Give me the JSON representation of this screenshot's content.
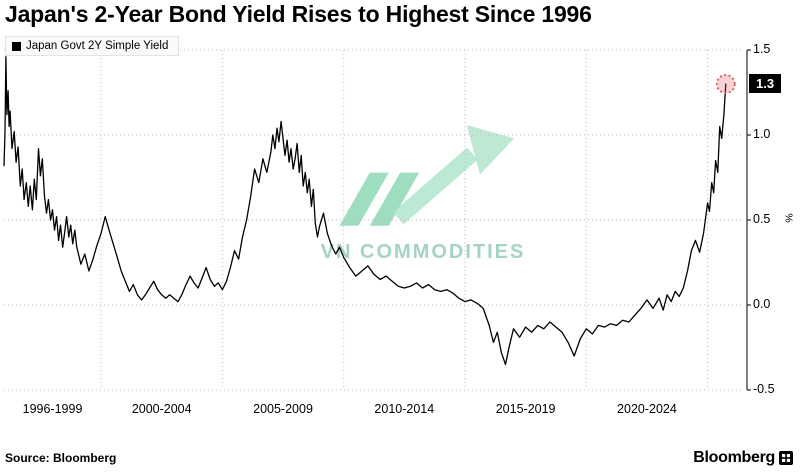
{
  "title": "Japan's 2-Year Bond Yield Rises to Highest Since 1996",
  "legend": {
    "label": "Japan Govt 2Y Simple Yield"
  },
  "watermark": "VN COMMODITIES",
  "source": "Source: Bloomberg",
  "brand": "Bloomberg",
  "last_value_label": "1.3",
  "axis": {
    "y_unit": "%",
    "y_tick_labels": [
      "1.5",
      "1.0",
      "0.5",
      "0.0",
      "-0.5"
    ],
    "x_labels": [
      "1996-1999",
      "2000-2004",
      "2005-2009",
      "2010-2014",
      "2015-2019",
      "2020-2024"
    ]
  },
  "colors": {
    "line": "#000000",
    "highlight": "#e05252",
    "highlight_fill": "rgba(232,96,96,0.28)",
    "watermark": "#9ccfbd",
    "grid": "#bcbcbc"
  },
  "chart_data": {
    "type": "line",
    "title": "Japan's 2-Year Bond Yield Rises to Highest Since 1996",
    "xlabel": "",
    "ylabel": "%",
    "xlim": [
      1996,
      2026.5
    ],
    "ylim": [
      -0.5,
      1.5
    ],
    "y_ticks": [
      1.5,
      1.0,
      0.5,
      0.0,
      -0.5
    ],
    "x_gridlines": [
      2000,
      2005,
      2010,
      2015,
      2020,
      2025
    ],
    "x_label_centers": [
      1998,
      2002.5,
      2007.5,
      2012.5,
      2017.5,
      2022.5
    ],
    "last_value": 1.3,
    "series": [
      {
        "name": "Japan Govt 2Y Simple Yield",
        "points": [
          [
            1996.0,
            0.82
          ],
          [
            1996.04,
            1.02
          ],
          [
            1996.08,
            1.46
          ],
          [
            1996.12,
            1.12
          ],
          [
            1996.17,
            1.26
          ],
          [
            1996.21,
            1.05
          ],
          [
            1996.25,
            1.14
          ],
          [
            1996.33,
            0.92
          ],
          [
            1996.42,
            1.02
          ],
          [
            1996.5,
            0.84
          ],
          [
            1996.58,
            0.93
          ],
          [
            1996.67,
            0.7
          ],
          [
            1996.75,
            0.8
          ],
          [
            1996.83,
            0.62
          ],
          [
            1996.92,
            0.72
          ],
          [
            1997.0,
            0.58
          ],
          [
            1997.08,
            0.7
          ],
          [
            1997.17,
            0.56
          ],
          [
            1997.25,
            0.74
          ],
          [
            1997.33,
            0.62
          ],
          [
            1997.42,
            0.92
          ],
          [
            1997.5,
            0.76
          ],
          [
            1997.58,
            0.86
          ],
          [
            1997.67,
            0.64
          ],
          [
            1997.75,
            0.54
          ],
          [
            1997.83,
            0.62
          ],
          [
            1997.92,
            0.5
          ],
          [
            1998.0,
            0.56
          ],
          [
            1998.08,
            0.44
          ],
          [
            1998.17,
            0.52
          ],
          [
            1998.25,
            0.38
          ],
          [
            1998.33,
            0.47
          ],
          [
            1998.42,
            0.34
          ],
          [
            1998.5,
            0.43
          ],
          [
            1998.58,
            0.52
          ],
          [
            1998.67,
            0.4
          ],
          [
            1998.75,
            0.47
          ],
          [
            1998.83,
            0.36
          ],
          [
            1998.92,
            0.44
          ],
          [
            1999.0,
            0.34
          ],
          [
            1999.17,
            0.24
          ],
          [
            1999.33,
            0.3
          ],
          [
            1999.5,
            0.2
          ],
          [
            1999.67,
            0.27
          ],
          [
            1999.83,
            0.35
          ],
          [
            2000.0,
            0.42
          ],
          [
            2000.17,
            0.52
          ],
          [
            2000.33,
            0.44
          ],
          [
            2000.5,
            0.36
          ],
          [
            2000.67,
            0.28
          ],
          [
            2000.83,
            0.2
          ],
          [
            2001.0,
            0.14
          ],
          [
            2001.17,
            0.08
          ],
          [
            2001.33,
            0.12
          ],
          [
            2001.5,
            0.06
          ],
          [
            2001.67,
            0.03
          ],
          [
            2001.83,
            0.06
          ],
          [
            2002.0,
            0.1
          ],
          [
            2002.17,
            0.14
          ],
          [
            2002.33,
            0.09
          ],
          [
            2002.5,
            0.06
          ],
          [
            2002.67,
            0.04
          ],
          [
            2002.83,
            0.06
          ],
          [
            2003.0,
            0.04
          ],
          [
            2003.17,
            0.02
          ],
          [
            2003.33,
            0.06
          ],
          [
            2003.5,
            0.12
          ],
          [
            2003.67,
            0.17
          ],
          [
            2003.83,
            0.13
          ],
          [
            2004.0,
            0.1
          ],
          [
            2004.17,
            0.16
          ],
          [
            2004.33,
            0.22
          ],
          [
            2004.5,
            0.15
          ],
          [
            2004.67,
            0.11
          ],
          [
            2004.83,
            0.13
          ],
          [
            2005.0,
            0.09
          ],
          [
            2005.17,
            0.14
          ],
          [
            2005.33,
            0.22
          ],
          [
            2005.5,
            0.32
          ],
          [
            2005.67,
            0.27
          ],
          [
            2005.83,
            0.4
          ],
          [
            2006.0,
            0.5
          ],
          [
            2006.17,
            0.64
          ],
          [
            2006.33,
            0.8
          ],
          [
            2006.5,
            0.72
          ],
          [
            2006.67,
            0.86
          ],
          [
            2006.83,
            0.78
          ],
          [
            2007.0,
            0.9
          ],
          [
            2007.08,
            1.0
          ],
          [
            2007.17,
            0.92
          ],
          [
            2007.25,
            1.04
          ],
          [
            2007.33,
            0.96
          ],
          [
            2007.42,
            1.08
          ],
          [
            2007.5,
            0.98
          ],
          [
            2007.58,
            0.88
          ],
          [
            2007.67,
            0.97
          ],
          [
            2007.75,
            0.84
          ],
          [
            2007.83,
            0.92
          ],
          [
            2007.92,
            0.8
          ],
          [
            2008.0,
            0.86
          ],
          [
            2008.08,
            0.95
          ],
          [
            2008.17,
            0.78
          ],
          [
            2008.25,
            0.88
          ],
          [
            2008.33,
            0.7
          ],
          [
            2008.42,
            0.78
          ],
          [
            2008.5,
            0.66
          ],
          [
            2008.58,
            0.74
          ],
          [
            2008.67,
            0.58
          ],
          [
            2008.75,
            0.68
          ],
          [
            2008.83,
            0.48
          ],
          [
            2008.92,
            0.4
          ],
          [
            2009.0,
            0.46
          ],
          [
            2009.17,
            0.54
          ],
          [
            2009.33,
            0.42
          ],
          [
            2009.5,
            0.35
          ],
          [
            2009.67,
            0.3
          ],
          [
            2009.83,
            0.34
          ],
          [
            2010.0,
            0.28
          ],
          [
            2010.25,
            0.22
          ],
          [
            2010.5,
            0.17
          ],
          [
            2010.75,
            0.2
          ],
          [
            2011.0,
            0.23
          ],
          [
            2011.25,
            0.18
          ],
          [
            2011.5,
            0.15
          ],
          [
            2011.75,
            0.17
          ],
          [
            2012.0,
            0.14
          ],
          [
            2012.25,
            0.11
          ],
          [
            2012.5,
            0.1
          ],
          [
            2012.75,
            0.11
          ],
          [
            2013.0,
            0.13
          ],
          [
            2013.25,
            0.1
          ],
          [
            2013.5,
            0.12
          ],
          [
            2013.75,
            0.09
          ],
          [
            2014.0,
            0.08
          ],
          [
            2014.25,
            0.09
          ],
          [
            2014.5,
            0.07
          ],
          [
            2014.75,
            0.04
          ],
          [
            2015.0,
            0.02
          ],
          [
            2015.25,
            0.03
          ],
          [
            2015.5,
            0.01
          ],
          [
            2015.75,
            -0.02
          ],
          [
            2016.0,
            -0.12
          ],
          [
            2016.17,
            -0.22
          ],
          [
            2016.33,
            -0.16
          ],
          [
            2016.5,
            -0.28
          ],
          [
            2016.67,
            -0.35
          ],
          [
            2016.83,
            -0.24
          ],
          [
            2017.0,
            -0.14
          ],
          [
            2017.25,
            -0.19
          ],
          [
            2017.5,
            -0.13
          ],
          [
            2017.75,
            -0.16
          ],
          [
            2018.0,
            -0.12
          ],
          [
            2018.25,
            -0.14
          ],
          [
            2018.5,
            -0.1
          ],
          [
            2018.75,
            -0.13
          ],
          [
            2019.0,
            -0.16
          ],
          [
            2019.25,
            -0.22
          ],
          [
            2019.5,
            -0.3
          ],
          [
            2019.75,
            -0.2
          ],
          [
            2020.0,
            -0.14
          ],
          [
            2020.25,
            -0.17
          ],
          [
            2020.5,
            -0.12
          ],
          [
            2020.75,
            -0.13
          ],
          [
            2021.0,
            -0.11
          ],
          [
            2021.25,
            -0.12
          ],
          [
            2021.5,
            -0.09
          ],
          [
            2021.75,
            -0.1
          ],
          [
            2022.0,
            -0.06
          ],
          [
            2022.25,
            -0.02
          ],
          [
            2022.5,
            0.03
          ],
          [
            2022.75,
            -0.02
          ],
          [
            2023.0,
            0.04
          ],
          [
            2023.17,
            -0.03
          ],
          [
            2023.33,
            0.06
          ],
          [
            2023.5,
            0.02
          ],
          [
            2023.67,
            0.08
          ],
          [
            2023.83,
            0.05
          ],
          [
            2024.0,
            0.1
          ],
          [
            2024.17,
            0.2
          ],
          [
            2024.33,
            0.32
          ],
          [
            2024.5,
            0.38
          ],
          [
            2024.67,
            0.31
          ],
          [
            2024.83,
            0.42
          ],
          [
            2025.0,
            0.6
          ],
          [
            2025.08,
            0.55
          ],
          [
            2025.17,
            0.72
          ],
          [
            2025.25,
            0.66
          ],
          [
            2025.33,
            0.85
          ],
          [
            2025.42,
            0.78
          ],
          [
            2025.5,
            1.05
          ],
          [
            2025.58,
            0.98
          ],
          [
            2025.67,
            1.12
          ],
          [
            2025.75,
            1.3
          ]
        ]
      }
    ]
  }
}
